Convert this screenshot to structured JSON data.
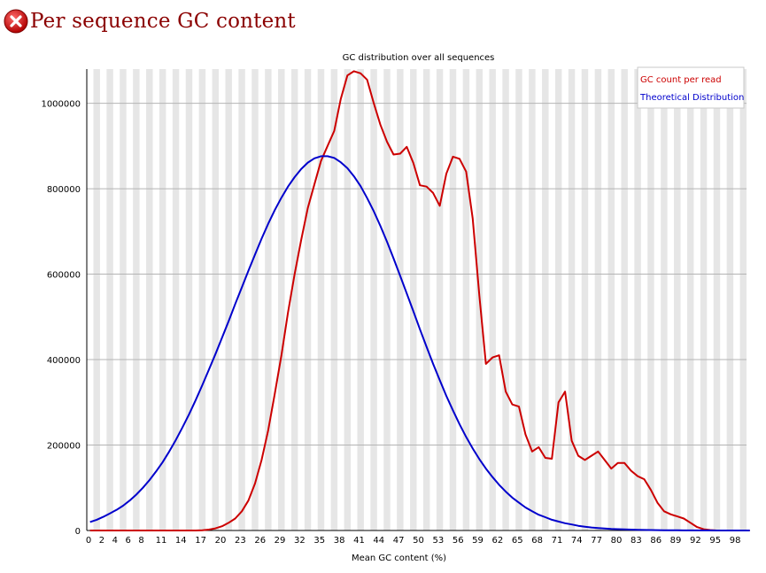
{
  "header": {
    "title": "Per sequence GC content",
    "status_icon": "error-icon",
    "status_color": "#cc0000"
  },
  "chart_data": {
    "type": "line",
    "title": "GC distribution over all sequences",
    "xlabel": "Mean GC content (%)",
    "ylabel": "",
    "xlim": [
      0,
      100
    ],
    "ylim": [
      0,
      1080000
    ],
    "y_ticks": [
      0,
      200000,
      400000,
      600000,
      800000,
      1000000
    ],
    "x_tick_labels": [
      "0",
      "2",
      "4",
      "6",
      "8",
      "11",
      "14",
      "17",
      "20",
      "23",
      "26",
      "29",
      "32",
      "35",
      "38",
      "41",
      "44",
      "47",
      "50",
      "53",
      "56",
      "59",
      "62",
      "65",
      "68",
      "71",
      "74",
      "77",
      "80",
      "83",
      "86",
      "89",
      "92",
      "95",
      "98"
    ],
    "grid": "horizontal lines with alternating vertical bands",
    "legend_position": "top-right",
    "series": [
      {
        "name": "GC count per read",
        "color": "#cc0000",
        "x": [
          0,
          1,
          2,
          3,
          4,
          5,
          6,
          7,
          8,
          9,
          10,
          11,
          12,
          13,
          14,
          15,
          16,
          17,
          18,
          19,
          20,
          21,
          22,
          23,
          24,
          25,
          26,
          27,
          28,
          29,
          30,
          31,
          32,
          33,
          34,
          35,
          36,
          37,
          38,
          39,
          40,
          41,
          42,
          43,
          44,
          45,
          46,
          47,
          48,
          49,
          50,
          51,
          52,
          53,
          54,
          55,
          56,
          57,
          58,
          59,
          60,
          61,
          62,
          63,
          64,
          65,
          66,
          67,
          68,
          69,
          70,
          71,
          72,
          73,
          74,
          75,
          76,
          77,
          78,
          79,
          80,
          81,
          82,
          83,
          84,
          85,
          86,
          87,
          88,
          89,
          90,
          91,
          92,
          93,
          94,
          95,
          96,
          97,
          98,
          99,
          100
        ],
        "values": [
          0,
          0,
          0,
          0,
          0,
          0,
          0,
          0,
          0,
          0,
          0,
          0,
          0,
          0,
          0,
          0,
          0,
          500,
          2000,
          5000,
          10000,
          18000,
          28000,
          45000,
          70000,
          110000,
          165000,
          235000,
          320000,
          410000,
          510000,
          600000,
          680000,
          755000,
          810000,
          865000,
          900000,
          935000,
          1010000,
          1065000,
          1075000,
          1070000,
          1055000,
          1000000,
          950000,
          910000,
          880000,
          882000,
          898000,
          860000,
          808000,
          805000,
          790000,
          760000,
          835000,
          875000,
          870000,
          840000,
          730000,
          550000,
          390000,
          405000,
          410000,
          325000,
          295000,
          290000,
          225000,
          185000,
          195000,
          170000,
          168000,
          300000,
          325000,
          210000,
          175000,
          165000,
          175000,
          185000,
          165000,
          145000,
          158000,
          158000,
          140000,
          127000,
          120000,
          95000,
          65000,
          45000,
          38000,
          33000,
          28000,
          18000,
          8000,
          3000,
          1000,
          0,
          0,
          0,
          0,
          0,
          0
        ],
        "note_offset_start": 0
      },
      {
        "name": "Theoretical Distribution",
        "color": "#0000cc",
        "x": [
          0,
          1,
          2,
          3,
          4,
          5,
          6,
          7,
          8,
          9,
          10,
          11,
          12,
          13,
          14,
          15,
          16,
          17,
          18,
          19,
          20,
          21,
          22,
          23,
          24,
          25,
          26,
          27,
          28,
          29,
          30,
          31,
          32,
          33,
          34,
          35,
          36,
          37,
          38,
          39,
          40,
          41,
          42,
          43,
          44,
          45,
          46,
          47,
          48,
          49,
          50,
          51,
          52,
          53,
          54,
          55,
          56,
          57,
          58,
          59,
          60,
          61,
          62,
          63,
          64,
          65,
          66,
          67,
          68,
          69,
          70,
          71,
          72,
          73,
          74,
          75,
          76,
          77,
          78,
          79,
          80,
          81,
          82,
          83,
          84,
          85,
          86,
          87,
          88,
          89,
          90,
          91,
          92,
          93,
          94,
          95,
          96,
          97,
          98,
          99,
          100
        ],
        "values": [
          20000,
          25000,
          32000,
          40000,
          48000,
          58000,
          70000,
          84000,
          100000,
          118000,
          138000,
          160000,
          185000,
          212000,
          241000,
          272000,
          305000,
          340000,
          376000,
          413000,
          451000,
          490000,
          530000,
          569000,
          608000,
          646000,
          683000,
          718000,
          750000,
          779000,
          805000,
          827000,
          846000,
          861000,
          871000,
          876000,
          876000,
          872000,
          862000,
          848000,
          829000,
          806000,
          778000,
          747000,
          713000,
          676000,
          637000,
          596000,
          555000,
          513000,
          471000,
          430000,
          390000,
          352000,
          315000,
          281000,
          249000,
          219000,
          192000,
          167000,
          145000,
          125000,
          107000,
          91000,
          77000,
          65000,
          54000,
          45000,
          37000,
          31000,
          25000,
          21000,
          17000,
          14000,
          11000,
          9000,
          7000,
          5800,
          4700,
          3800,
          3100,
          2500,
          2000,
          1600,
          1300,
          1000,
          800,
          600,
          500,
          400,
          300,
          250,
          200,
          150,
          120,
          100,
          80,
          60,
          50,
          40,
          30
        ]
      }
    ]
  }
}
